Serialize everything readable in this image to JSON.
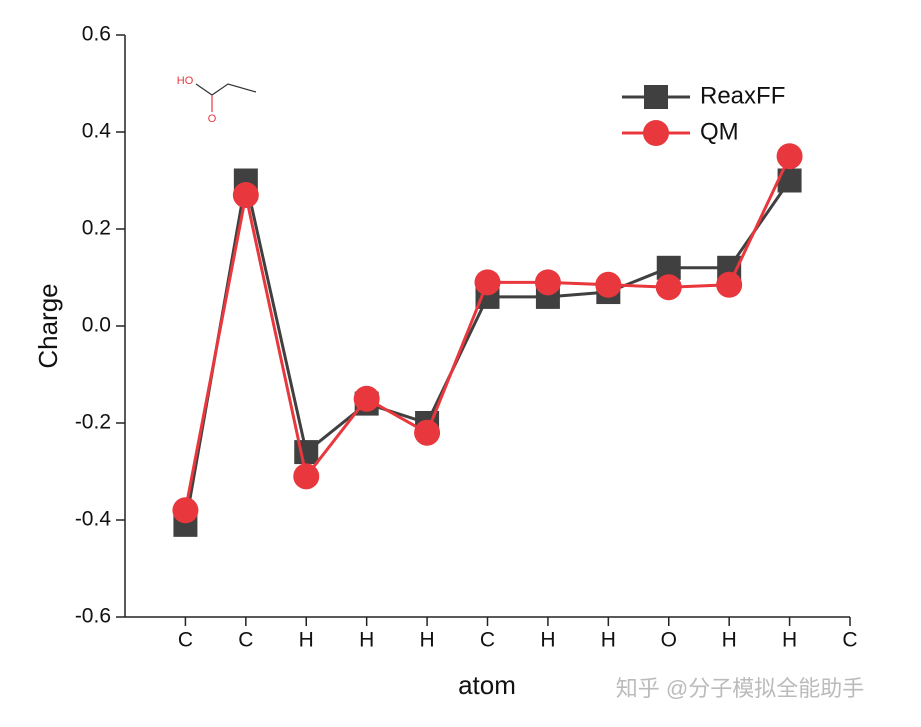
{
  "chart_data": {
    "type": "line",
    "xlabel": "atom",
    "ylabel": "Charge",
    "categories": [
      "C",
      "C",
      "H",
      "H",
      "H",
      "C",
      "H",
      "H",
      "O",
      "H",
      "H",
      "C"
    ],
    "series": [
      {
        "name": "ReaxFF",
        "color": "#404040",
        "marker": "square",
        "values": [
          -0.41,
          0.3,
          -0.26,
          -0.16,
          -0.2,
          0.06,
          0.06,
          0.07,
          0.12,
          0.12,
          0.3,
          null
        ]
      },
      {
        "name": "QM",
        "color": "#e8383d",
        "marker": "circle",
        "values": [
          -0.38,
          0.27,
          -0.31,
          -0.15,
          -0.22,
          0.09,
          0.09,
          0.085,
          0.08,
          0.085,
          0.35,
          null
        ]
      }
    ],
    "ylim": [
      -0.6,
      0.6
    ],
    "yticks": [
      -0.6,
      -0.4,
      -0.2,
      {
        "value": 0,
        "label": "0.0"
      },
      0.2,
      0.4,
      0.6
    ],
    "legend": "upper right",
    "molecule_labels": [
      "HO",
      "O"
    ],
    "watermark": "知乎 @分子模拟全能助手"
  }
}
